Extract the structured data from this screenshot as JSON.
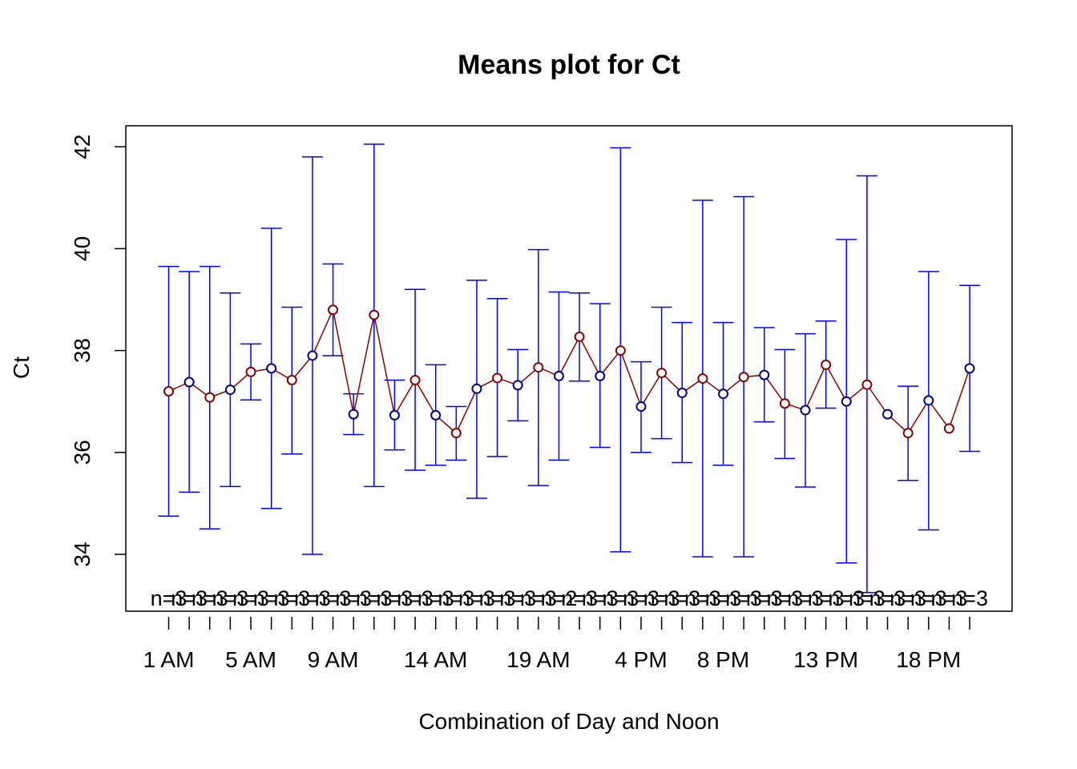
{
  "chart_data": {
    "type": "line",
    "title": "Means plot for Ct",
    "xlabel": "Combination of Day and Noon",
    "ylabel": "Ct",
    "ylim": [
      33.0,
      42.4
    ],
    "yticks": [
      34,
      36,
      38,
      40,
      42
    ],
    "grid": false,
    "legend": "none",
    "colors": {
      "line": "#8b0000",
      "point_dark": "#8b0000",
      "point_navy": "#000080",
      "error_bars": "#0000ff",
      "frame": "#000000"
    },
    "xtick_labels": [
      {
        "index": 1,
        "label": "1 AM"
      },
      {
        "index": 5,
        "label": "5 AM"
      },
      {
        "index": 9,
        "label": "9 AM"
      },
      {
        "index": 14,
        "label": "14 AM"
      },
      {
        "index": 19,
        "label": "19 AM"
      },
      {
        "index": 24,
        "label": "4 PM"
      },
      {
        "index": 28,
        "label": "8 PM"
      },
      {
        "index": 33,
        "label": "13 PM"
      },
      {
        "index": 38,
        "label": "18 PM"
      }
    ],
    "series": [
      {
        "points": [
          {
            "x": 1,
            "mean": 37.2,
            "lower": 34.75,
            "upper": 39.65,
            "n": "n=3",
            "pcolor": "dark"
          },
          {
            "x": 2,
            "mean": 37.38,
            "lower": 35.22,
            "upper": 39.55,
            "n": "n=3",
            "pcolor": "navy"
          },
          {
            "x": 3,
            "mean": 37.08,
            "lower": 34.5,
            "upper": 39.65,
            "n": "n=3",
            "pcolor": "dark"
          },
          {
            "x": 4,
            "mean": 37.23,
            "lower": 35.33,
            "upper": 39.13,
            "n": "n=3",
            "pcolor": "navy"
          },
          {
            "x": 5,
            "mean": 37.58,
            "lower": 37.03,
            "upper": 38.13,
            "n": "n=3",
            "pcolor": "dark"
          },
          {
            "x": 6,
            "mean": 37.65,
            "lower": 34.9,
            "upper": 40.4,
            "n": "n=3",
            "pcolor": "navy"
          },
          {
            "x": 7,
            "mean": 37.42,
            "lower": 35.97,
            "upper": 38.85,
            "n": "n=3",
            "pcolor": "dark"
          },
          {
            "x": 8,
            "mean": 37.9,
            "lower": 34.0,
            "upper": 41.8,
            "n": "n=3",
            "pcolor": "navy"
          },
          {
            "x": 9,
            "mean": 38.8,
            "lower": 37.9,
            "upper": 39.7,
            "n": "n=3",
            "pcolor": "dark"
          },
          {
            "x": 10,
            "mean": 36.75,
            "lower": 36.35,
            "upper": 37.15,
            "n": "n=3",
            "pcolor": "navy"
          },
          {
            "x": 11,
            "mean": 38.7,
            "lower": 35.33,
            "upper": 42.05,
            "n": "n=3",
            "pcolor": "dark"
          },
          {
            "x": 12,
            "mean": 36.73,
            "lower": 36.05,
            "upper": 37.42,
            "n": "n=3",
            "pcolor": "navy"
          },
          {
            "x": 13,
            "mean": 37.42,
            "lower": 35.65,
            "upper": 39.2,
            "n": "n=3",
            "pcolor": "dark"
          },
          {
            "x": 14,
            "mean": 36.73,
            "lower": 35.75,
            "upper": 37.72,
            "n": "n=3",
            "pcolor": "navy"
          },
          {
            "x": 15,
            "mean": 36.38,
            "lower": 35.85,
            "upper": 36.9,
            "n": "n=3",
            "pcolor": "dark"
          },
          {
            "x": 16,
            "mean": 37.25,
            "lower": 35.1,
            "upper": 39.38,
            "n": "n=3",
            "pcolor": "navy"
          },
          {
            "x": 17,
            "mean": 37.46,
            "lower": 35.92,
            "upper": 39.02,
            "n": "n=3",
            "pcolor": "dark"
          },
          {
            "x": 18,
            "mean": 37.32,
            "lower": 36.62,
            "upper": 38.02,
            "n": "n=3",
            "pcolor": "navy"
          },
          {
            "x": 19,
            "mean": 37.67,
            "lower": 35.35,
            "upper": 39.98,
            "n": "n=3",
            "pcolor": "dark"
          },
          {
            "x": 20,
            "mean": 37.5,
            "lower": 35.85,
            "upper": 39.15,
            "n": "n=2",
            "pcolor": "navy"
          },
          {
            "x": 21,
            "mean": 38.27,
            "lower": 37.4,
            "upper": 39.13,
            "n": "n=3",
            "pcolor": "dark"
          },
          {
            "x": 22,
            "mean": 37.5,
            "lower": 36.1,
            "upper": 38.92,
            "n": "n=3",
            "pcolor": "navy"
          },
          {
            "x": 23,
            "mean": 38.0,
            "lower": 34.05,
            "upper": 41.98,
            "n": "n=3",
            "pcolor": "dark"
          },
          {
            "x": 24,
            "mean": 36.9,
            "lower": 36.0,
            "upper": 37.78,
            "n": "n=3",
            "pcolor": "navy"
          },
          {
            "x": 25,
            "mean": 37.56,
            "lower": 36.27,
            "upper": 38.85,
            "n": "n=3",
            "pcolor": "dark"
          },
          {
            "x": 26,
            "mean": 37.17,
            "lower": 35.8,
            "upper": 38.55,
            "n": "n=3",
            "pcolor": "navy"
          },
          {
            "x": 27,
            "mean": 37.45,
            "lower": 33.95,
            "upper": 40.95,
            "n": "n=3",
            "pcolor": "dark"
          },
          {
            "x": 28,
            "mean": 37.15,
            "lower": 35.75,
            "upper": 38.55,
            "n": "n=3",
            "pcolor": "navy"
          },
          {
            "x": 29,
            "mean": 37.48,
            "lower": 33.95,
            "upper": 41.02,
            "n": "n=3",
            "pcolor": "dark"
          },
          {
            "x": 30,
            "mean": 37.52,
            "lower": 36.6,
            "upper": 38.45,
            "n": "n=3",
            "pcolor": "navy"
          },
          {
            "x": 31,
            "mean": 36.96,
            "lower": 35.88,
            "upper": 38.02,
            "n": "n=3",
            "pcolor": "dark"
          },
          {
            "x": 32,
            "mean": 36.83,
            "lower": 35.32,
            "upper": 38.33,
            "n": "n=3",
            "pcolor": "navy"
          },
          {
            "x": 33,
            "mean": 37.72,
            "lower": 36.87,
            "upper": 38.58,
            "n": "n=3",
            "pcolor": "dark"
          },
          {
            "x": 34,
            "mean": 37.0,
            "lower": 33.83,
            "upper": 40.18,
            "n": "n=3",
            "pcolor": "navy"
          },
          {
            "x": 35,
            "mean": 37.33,
            "lower": 33.25,
            "upper": 41.43,
            "n": "n=3",
            "pcolor": "dark"
          },
          {
            "x": 36,
            "mean": 36.75,
            "lower": 36.75,
            "upper": 36.75,
            "n": "n=3",
            "pcolor": "navy"
          },
          {
            "x": 37,
            "mean": 36.38,
            "lower": 35.45,
            "upper": 37.3,
            "n": "n=3",
            "pcolor": "dark"
          },
          {
            "x": 38,
            "mean": 37.02,
            "lower": 34.48,
            "upper": 39.55,
            "n": "n=3",
            "pcolor": "navy"
          },
          {
            "x": 39,
            "mean": 36.47,
            "lower": 36.47,
            "upper": 36.47,
            "n": "n=3",
            "pcolor": "dark"
          },
          {
            "x": 40,
            "mean": 37.65,
            "lower": 36.02,
            "upper": 39.28,
            "n": "n=3",
            "pcolor": "navy"
          }
        ]
      }
    ]
  }
}
